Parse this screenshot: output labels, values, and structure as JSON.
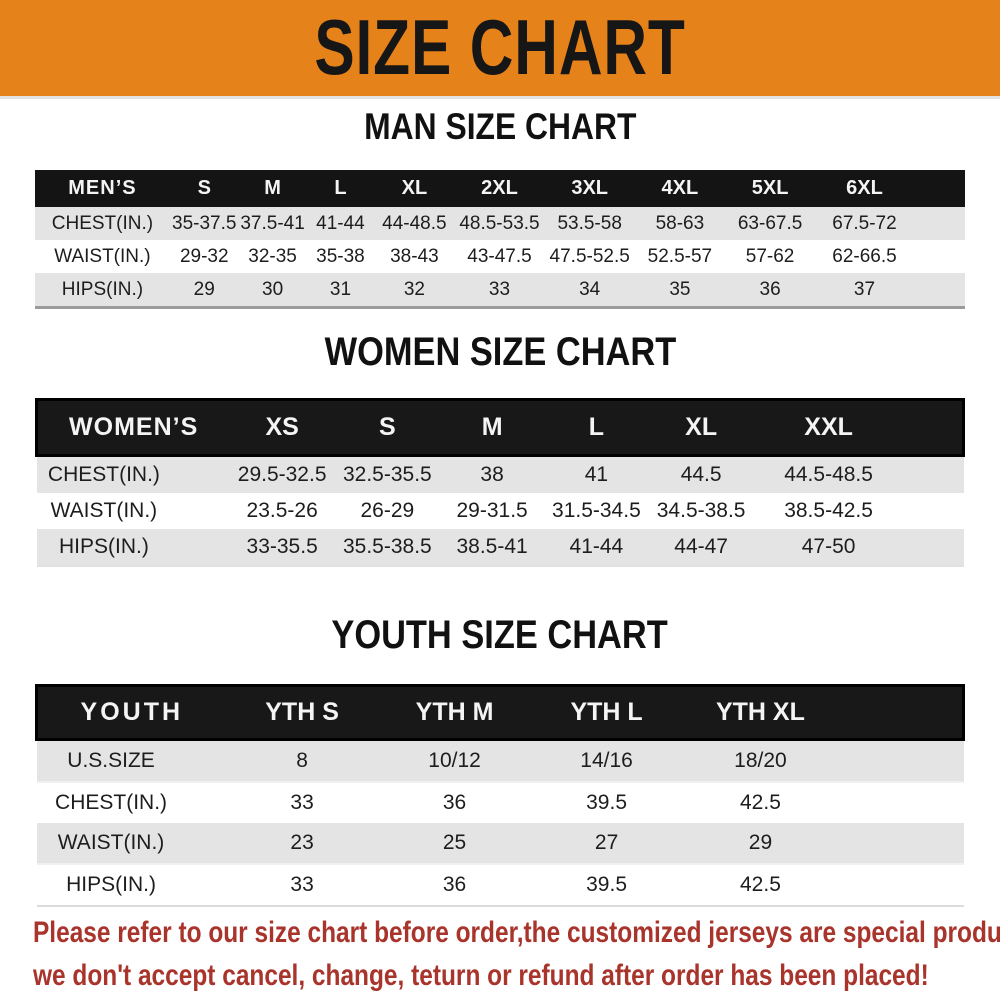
{
  "banner": {
    "title": "SIZE CHART",
    "bg_color": "#E6821A"
  },
  "sections": [
    {
      "title": "MAN SIZE CHART",
      "header_label": "MEN’S",
      "columns": [
        "S",
        "M",
        "L",
        "XL",
        "2XL",
        "3XL",
        "4XL",
        "5XL",
        "6XL"
      ],
      "rows": [
        {
          "label": "CHEST(IN.)",
          "values": [
            "35-37.5",
            "37.5-41",
            "41-44",
            "44-48.5",
            "48.5-53.5",
            "53.5-58",
            "58-63",
            "63-67.5",
            "67.5-72"
          ]
        },
        {
          "label": "WAIST(IN.)",
          "values": [
            "29-32",
            "32-35",
            "35-38",
            "38-43",
            "43-47.5",
            "47.5-52.5",
            "52.5-57",
            "57-62",
            "62-66.5"
          ]
        },
        {
          "label": "HIPS(IN.)",
          "values": [
            "29",
            "30",
            "31",
            "32",
            "33",
            "34",
            "35",
            "36",
            "37"
          ]
        }
      ]
    },
    {
      "title": "WOMEN SIZE CHART",
      "header_label": "WOMEN’S",
      "columns": [
        "XS",
        "S",
        "M",
        "L",
        "XL",
        "XXL"
      ],
      "rows": [
        {
          "label": "CHEST(IN.)",
          "values": [
            "29.5-32.5",
            "32.5-35.5",
            "38",
            "41",
            "44.5",
            "44.5-48.5"
          ]
        },
        {
          "label": "WAIST(IN.)",
          "values": [
            "23.5-26",
            "26-29",
            "29-31.5",
            "31.5-34.5",
            "34.5-38.5",
            "38.5-42.5"
          ]
        },
        {
          "label": "HIPS(IN.)",
          "values": [
            "33-35.5",
            "35.5-38.5",
            "38.5-41",
            "41-44",
            "44-47",
            "47-50"
          ]
        }
      ]
    },
    {
      "title": "YOUTH SIZE CHART",
      "header_label": "YOUTH",
      "columns": [
        "YTH S",
        "YTH M",
        "YTH L",
        "YTH XL"
      ],
      "rows": [
        {
          "label": "U.S.SIZE",
          "values": [
            "8",
            "10/12",
            "14/16",
            "18/20"
          ]
        },
        {
          "label": "CHEST(IN.)",
          "values": [
            "33",
            "36",
            "39.5",
            "42.5"
          ]
        },
        {
          "label": "WAIST(IN.)",
          "values": [
            "23",
            "25",
            "27",
            "29"
          ]
        },
        {
          "label": "HIPS(IN.)",
          "values": [
            "33",
            "36",
            "39.5",
            "42.5"
          ]
        }
      ]
    }
  ],
  "footer": {
    "lines": [
      "Please refer to our size chart before order,the customized jerseys are special products,",
      "we don't accept cancel, change, teturn or refund after order has been placed!"
    ],
    "text_color": "#A9342C"
  }
}
